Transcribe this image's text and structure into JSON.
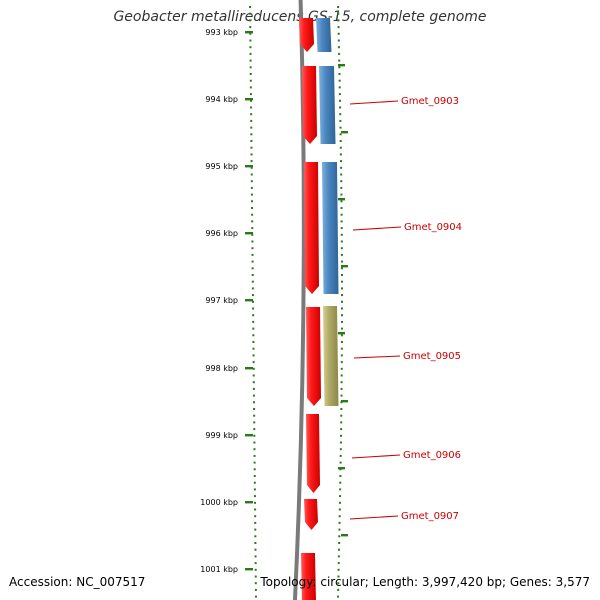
{
  "title": "Geobacter metallireducens GS-15, complete genome",
  "accession": "Accession: NC_007517",
  "topology": "Topology: circular; Length: 3,997,420 bp; Genes: 3,577",
  "colors": {
    "backbone": "#7a7a7a",
    "tick": "#2a7a1a",
    "cds": "#ee1111",
    "gene_blue": "#4a86c0",
    "gene_olive": "#b0aa68",
    "label": "#cc0000"
  },
  "scale_labels": [
    "993 kbp",
    "994 kbp",
    "995 kbp",
    "996 kbp",
    "997 kbp",
    "998 kbp",
    "999 kbp",
    "1000 kbp",
    "1001 kbp"
  ],
  "genes": [
    {
      "name": "Gmet_0903"
    },
    {
      "name": "Gmet_0904"
    },
    {
      "name": "Gmet_0905"
    },
    {
      "name": "Gmet_0906"
    },
    {
      "name": "Gmet_0907"
    }
  ]
}
